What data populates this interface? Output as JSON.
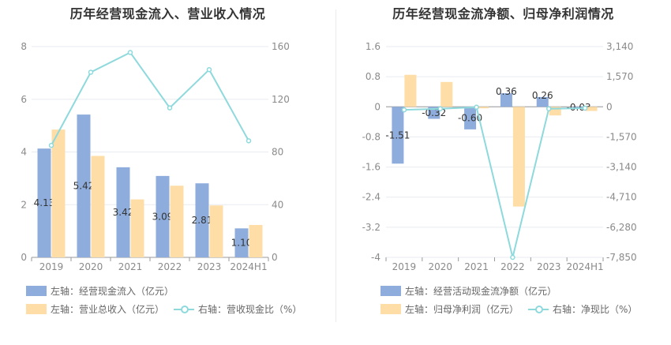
{
  "colors": {
    "bar_primary": "#8eaddc",
    "bar_secondary": "#fedda6",
    "line": "#8ed9dc",
    "grid": "#e8ebf0",
    "axis": "#999999"
  },
  "charts": [
    {
      "title": "历年经营现金流入、营业收入情况",
      "legend": [
        {
          "label": "左轴：经营现金流入（亿元）",
          "kind": "bar",
          "color": "#8eaddc"
        },
        {
          "label": "左轴：营业总收入（亿元）",
          "kind": "bar",
          "color": "#fedda6"
        },
        {
          "label": "右轴：营收现金比（%）",
          "kind": "line",
          "color": "#8ed9dc"
        }
      ]
    },
    {
      "title": "历年经营现金流净额、归母净利润情况",
      "legend": [
        {
          "label": "左轴：经营活动现金流净额（亿元）",
          "kind": "bar",
          "color": "#8eaddc"
        },
        {
          "label": "左轴：归母净利润（亿元）",
          "kind": "bar",
          "color": "#fedda6"
        },
        {
          "label": "右轴：净现比（%）",
          "kind": "line",
          "color": "#8ed9dc"
        }
      ]
    }
  ],
  "chart_data": [
    {
      "type": "bar",
      "title": "历年经营现金流入、营业收入情况",
      "categories": [
        "2019",
        "2020",
        "2021",
        "2022",
        "2023",
        "2024H1"
      ],
      "series": [
        {
          "name": "左轴：经营现金流入（亿元）",
          "type": "bar",
          "axis": "left",
          "values": [
            4.13,
            5.42,
            3.42,
            3.09,
            2.81,
            1.1
          ],
          "labels": [
            "4.13",
            "5.42",
            "3.42",
            "3.09",
            "2.81",
            "1.10"
          ]
        },
        {
          "name": "左轴：营业总收入（亿元）",
          "type": "bar",
          "axis": "left",
          "values": [
            4.85,
            3.85,
            2.2,
            2.72,
            1.97,
            1.23
          ]
        },
        {
          "name": "右轴：营收现金比（%）",
          "type": "line",
          "axis": "right",
          "values": [
            85,
            140.5,
            155.5,
            113.5,
            142.5,
            88.5
          ]
        }
      ],
      "left_axis": {
        "range": [
          0,
          8
        ],
        "ticks": [
          "0",
          "2",
          "4",
          "6",
          "8"
        ]
      },
      "right_axis": {
        "range": [
          0,
          160
        ],
        "ticks": [
          "0",
          "40",
          "80",
          "120",
          "160"
        ]
      },
      "grid": true
    },
    {
      "type": "bar",
      "title": "历年经营现金流净额、归母净利润情况",
      "categories": [
        "2019",
        "2020",
        "2021",
        "2022",
        "2023",
        "2024H1"
      ],
      "series": [
        {
          "name": "左轴：经营活动现金流净额（亿元）",
          "type": "bar",
          "axis": "left",
          "values": [
            -1.51,
            -0.32,
            -0.6,
            0.36,
            0.26,
            -0.03
          ],
          "labels": [
            "-1.51",
            "-0.32",
            "-0.60",
            "0.36",
            "0.26",
            "-0.03"
          ]
        },
        {
          "name": "左轴：归母净利润（亿元）",
          "type": "bar",
          "axis": "left",
          "values": [
            0.85,
            0.66,
            -0.04,
            -2.65,
            -0.23,
            -0.11
          ]
        },
        {
          "name": "右轴：净现比（%）",
          "type": "line",
          "axis": "right",
          "values": [
            -160,
            -100,
            -20,
            -7850,
            -100,
            -70
          ]
        }
      ],
      "left_axis": {
        "range": [
          -4,
          1.6
        ],
        "ticks": [
          "1.6",
          "0.8",
          "0",
          "-0.8",
          "-1.6",
          "-2.4",
          "-3.2",
          "-4"
        ]
      },
      "right_axis": {
        "range": [
          -7850,
          3140
        ],
        "ticks": [
          "3,140",
          "1,570",
          "0",
          "-1,570",
          "-3,140",
          "-4,710",
          "-6,280",
          "-7,850"
        ]
      },
      "grid": true
    }
  ]
}
